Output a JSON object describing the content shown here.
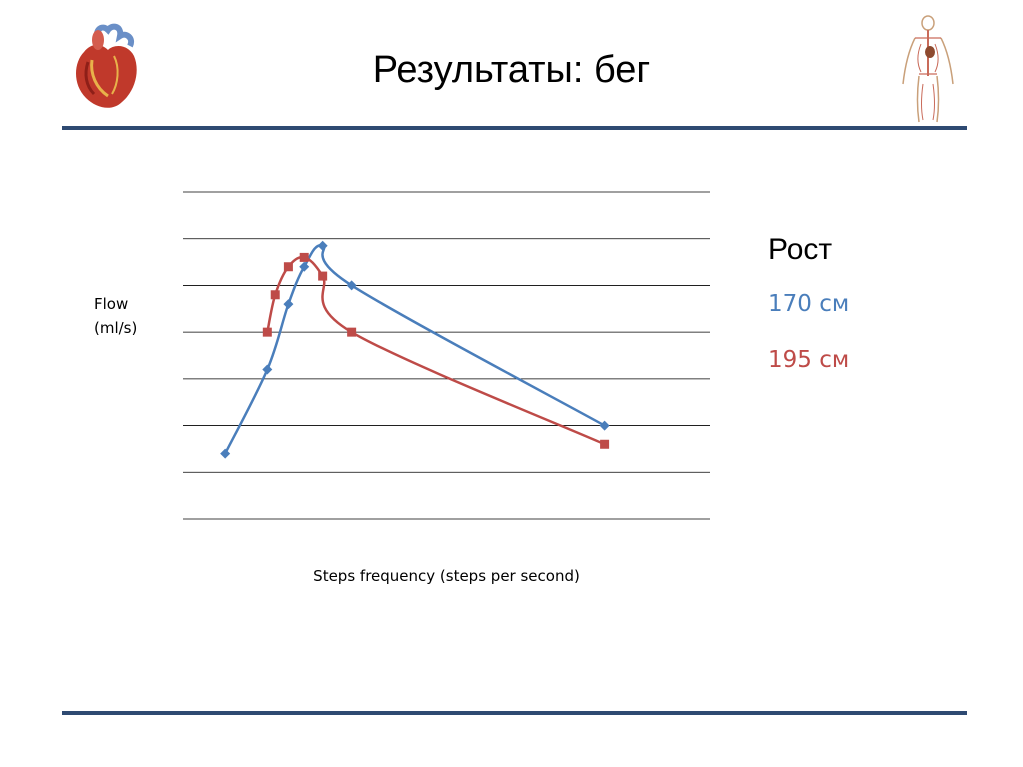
{
  "slide": {
    "title": "Результаты: бег"
  },
  "images": {
    "heart_icon": "heart-illustration",
    "anatomy_icon": "human-anatomy-illustration"
  },
  "colors": {
    "rule": "#2e4a72",
    "gridline": "#000000"
  },
  "chart_data": {
    "type": "line",
    "title": "",
    "xlabel": "Steps frequency (steps per second)",
    "ylabel": [
      "Flow",
      "(ml/s)"
    ],
    "x_unit_note": "no tick labels shown",
    "xlim": [
      0,
      10
    ],
    "ylim": [
      0,
      7
    ],
    "grid": "horizontal",
    "legend": {
      "title": "Рост",
      "placement": "right"
    },
    "series": [
      {
        "name": "170 см",
        "color": "#4a7ebb",
        "marker": "diamond",
        "points": [
          {
            "x": 0.8,
            "y": 1.4
          },
          {
            "x": 1.6,
            "y": 3.2
          },
          {
            "x": 2.0,
            "y": 4.6
          },
          {
            "x": 2.3,
            "y": 5.4
          },
          {
            "x": 2.65,
            "y": 5.85
          },
          {
            "x": 3.2,
            "y": 5.0
          },
          {
            "x": 8.0,
            "y": 2.0
          }
        ]
      },
      {
        "name": "195 см",
        "color": "#be4b48",
        "marker": "square",
        "points": [
          {
            "x": 1.6,
            "y": 4.0
          },
          {
            "x": 1.75,
            "y": 4.8
          },
          {
            "x": 2.0,
            "y": 5.4
          },
          {
            "x": 2.3,
            "y": 5.6
          },
          {
            "x": 2.65,
            "y": 5.2
          },
          {
            "x": 3.2,
            "y": 4.0
          },
          {
            "x": 8.0,
            "y": 1.6
          }
        ]
      }
    ]
  }
}
